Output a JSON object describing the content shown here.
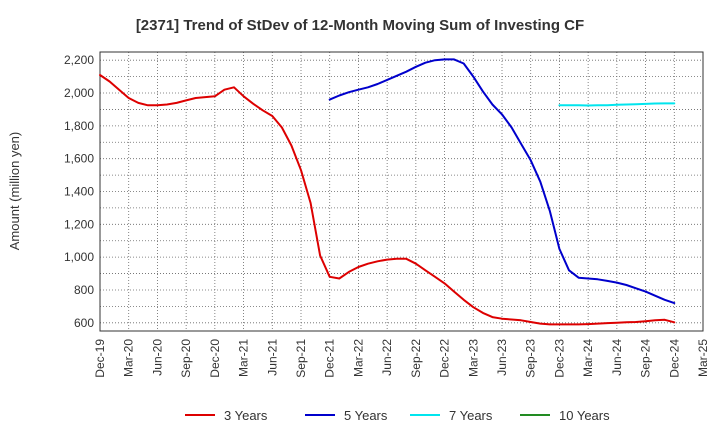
{
  "chart_data": {
    "type": "line",
    "title": "[2371]  Trend of StDev of 12-Month Moving Sum of Investing CF",
    "ylabel": "Amount (million yen)",
    "xlabel": "",
    "ylim": [
      550,
      2250
    ],
    "yticks": [
      600,
      800,
      1000,
      1200,
      1400,
      1600,
      1800,
      2000,
      2200
    ],
    "ytick_labels": [
      "600",
      "800",
      "1,000",
      "1,200",
      "1,400",
      "1,600",
      "1,800",
      "2,000",
      "2,200"
    ],
    "x_month_range": [
      "2019-12",
      "2025-03"
    ],
    "xtick_labels": [
      "Dec-19",
      "Mar-20",
      "Jun-20",
      "Sep-20",
      "Dec-20",
      "Mar-21",
      "Jun-21",
      "Sep-21",
      "Dec-21",
      "Mar-22",
      "Jun-22",
      "Sep-22",
      "Dec-22",
      "Mar-23",
      "Jun-23",
      "Sep-23",
      "Dec-23",
      "Mar-24",
      "Jun-24",
      "Sep-24",
      "Dec-24",
      "Mar-25"
    ],
    "grid": true,
    "legend_position": "bottom",
    "series": [
      {
        "name": "3 Years",
        "color": "#dd0000",
        "x": [
          "2019-12",
          "2020-01",
          "2020-02",
          "2020-03",
          "2020-04",
          "2020-05",
          "2020-06",
          "2020-07",
          "2020-08",
          "2020-09",
          "2020-10",
          "2020-11",
          "2020-12",
          "2021-01",
          "2021-02",
          "2021-03",
          "2021-04",
          "2021-05",
          "2021-06",
          "2021-07",
          "2021-08",
          "2021-09",
          "2021-10",
          "2021-11",
          "2021-12",
          "2022-01",
          "2022-02",
          "2022-03",
          "2022-04",
          "2022-05",
          "2022-06",
          "2022-07",
          "2022-08",
          "2022-09",
          "2022-10",
          "2022-11",
          "2022-12",
          "2023-01",
          "2023-02",
          "2023-03",
          "2023-04",
          "2023-05",
          "2023-06",
          "2023-07",
          "2023-08",
          "2023-09",
          "2023-10",
          "2023-11",
          "2023-12",
          "2024-01",
          "2024-02",
          "2024-03",
          "2024-04",
          "2024-05",
          "2024-06",
          "2024-07",
          "2024-08",
          "2024-09",
          "2024-10",
          "2024-11",
          "2024-12"
        ],
        "y": [
          2110,
          2070,
          2020,
          1970,
          1940,
          1925,
          1925,
          1930,
          1940,
          1955,
          1970,
          1975,
          1980,
          2020,
          2035,
          1980,
          1935,
          1895,
          1860,
          1790,
          1680,
          1530,
          1330,
          1010,
          880,
          870,
          910,
          940,
          960,
          975,
          985,
          990,
          990,
          960,
          920,
          880,
          840,
          790,
          740,
          695,
          660,
          635,
          625,
          620,
          615,
          605,
          595,
          590,
          590,
          590,
          590,
          592,
          595,
          598,
          600,
          603,
          605,
          610,
          615,
          618,
          603
        ]
      },
      {
        "name": "5 Years",
        "color": "#0000cc",
        "x": [
          "2021-12",
          "2022-01",
          "2022-02",
          "2022-03",
          "2022-04",
          "2022-05",
          "2022-06",
          "2022-07",
          "2022-08",
          "2022-09",
          "2022-10",
          "2022-11",
          "2022-12",
          "2023-01",
          "2023-02",
          "2023-03",
          "2023-04",
          "2023-05",
          "2023-06",
          "2023-07",
          "2023-08",
          "2023-09",
          "2023-10",
          "2023-11",
          "2023-12",
          "2024-01",
          "2024-02",
          "2024-03",
          "2024-04",
          "2024-05",
          "2024-06",
          "2024-07",
          "2024-08",
          "2024-09",
          "2024-10",
          "2024-11",
          "2024-12"
        ],
        "y": [
          1960,
          1985,
          2005,
          2020,
          2035,
          2055,
          2080,
          2105,
          2130,
          2160,
          2185,
          2200,
          2205,
          2205,
          2180,
          2100,
          2010,
          1930,
          1870,
          1790,
          1690,
          1590,
          1460,
          1280,
          1050,
          920,
          875,
          870,
          865,
          855,
          845,
          830,
          810,
          790,
          765,
          740,
          720
        ]
      },
      {
        "name": "7 Years",
        "color": "#00e5ee",
        "x": [
          "2023-12",
          "2024-01",
          "2024-02",
          "2024-03",
          "2024-04",
          "2024-05",
          "2024-06",
          "2024-07",
          "2024-08",
          "2024-09",
          "2024-10",
          "2024-11",
          "2024-12"
        ],
        "y": [
          1925,
          1925,
          1925,
          1924,
          1925,
          1926,
          1928,
          1930,
          1932,
          1934,
          1936,
          1937,
          1937
        ]
      },
      {
        "name": "10 Years",
        "color": "#228b22",
        "x": [],
        "y": []
      }
    ]
  }
}
